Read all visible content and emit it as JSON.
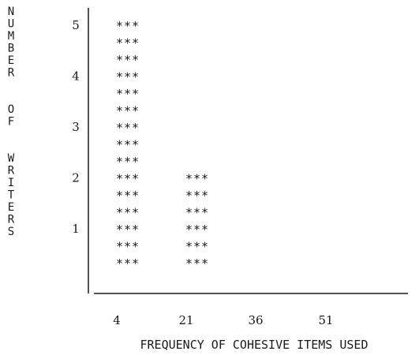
{
  "chart_data": {
    "type": "bar",
    "categories": [
      "4",
      "21",
      "36",
      "51"
    ],
    "values": [
      5,
      2,
      0,
      0
    ],
    "xlabel": "FREQUENCY OF COHESIVE ITEMS USED",
    "ylabel": "NUMBER OF WRITERS",
    "yticks": [
      "1",
      "2",
      "3",
      "4",
      "5"
    ],
    "ylim": [
      0,
      5
    ],
    "mark_symbol": "***",
    "rows_per_unit": 3,
    "grid": false,
    "legend": "none",
    "colors": {
      "ink": "#1a1a1a",
      "background": "#ffffff"
    }
  }
}
